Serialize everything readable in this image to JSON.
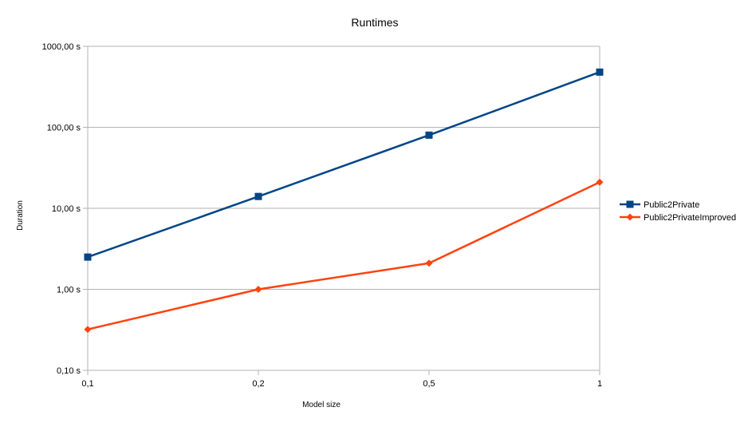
{
  "chart_data": {
    "type": "line",
    "title": "Runtimes",
    "xlabel": "Model size",
    "ylabel": "Duration",
    "y_scale": "log",
    "ylim": [
      0.1,
      1000
    ],
    "grid": true,
    "legend_position": "right",
    "categories": [
      "0,1",
      "0,2",
      "0,5",
      "1"
    ],
    "y_tick_labels": [
      "0,10 s",
      "1,00 s",
      "10,00 s",
      "100,00 s",
      "1000,00 s"
    ],
    "y_tick_values": [
      0.1,
      1,
      10,
      100,
      1000
    ],
    "series": [
      {
        "name": "Public2Private",
        "color": "#004586",
        "marker": "square",
        "values": [
          2.5,
          14,
          80,
          480
        ]
      },
      {
        "name": "Public2PrivateImproved",
        "color": "#ff420e",
        "marker": "diamond",
        "values": [
          0.32,
          1.0,
          2.1,
          21
        ]
      }
    ]
  }
}
